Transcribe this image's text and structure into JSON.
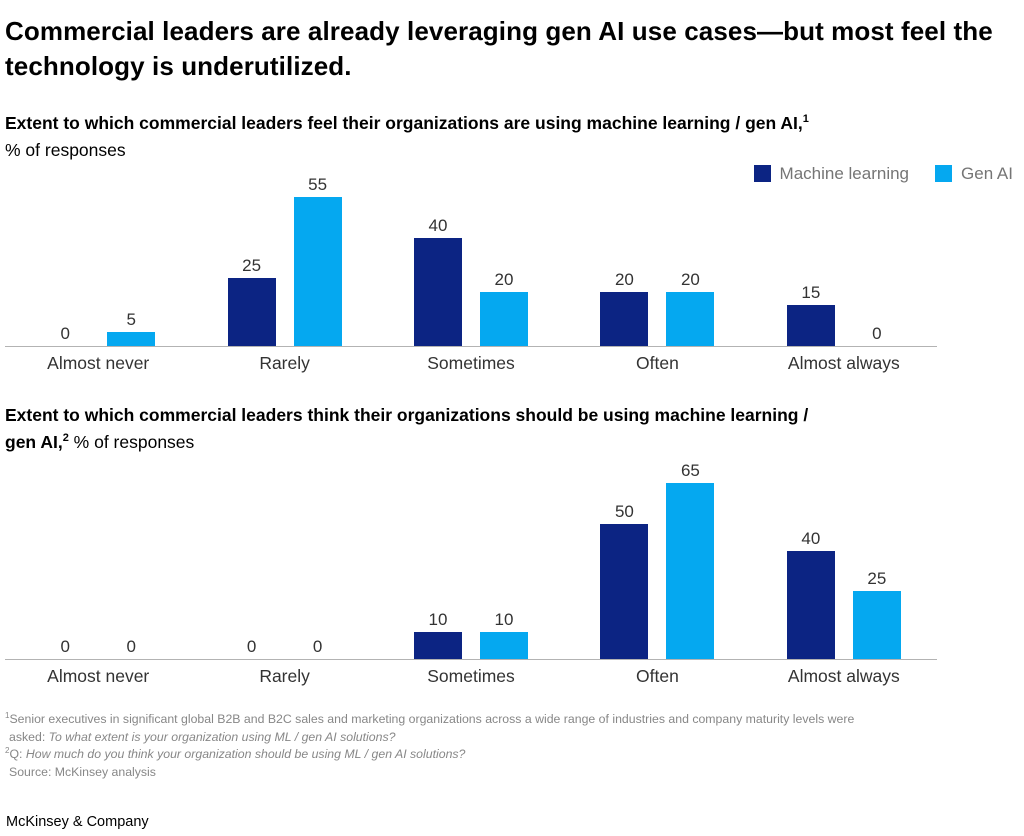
{
  "page": {
    "title": "Commercial leaders are already leveraging gen AI use cases—but most feel the technology is underutilized.",
    "footer": "McKinsey & Company"
  },
  "colors": {
    "machine_learning": "#0c2483",
    "gen_ai": "#05a8f0",
    "axis_line": "#b3b3b3",
    "legend_text": "#757575",
    "footnote_text": "#878787"
  },
  "legend": {
    "items": [
      {
        "label": "Machine learning",
        "color": "#0c2483"
      },
      {
        "label": "Gen AI",
        "color": "#05a8f0"
      }
    ]
  },
  "chart_data": [
    {
      "type": "bar",
      "title_line1_bold": "Extent to which commercial leaders feel their organizations are using machine learning / gen AI,",
      "title_sup": "1",
      "title_line2_regular": "% of responses",
      "categories": [
        "Almost never",
        "Rarely",
        "Sometimes",
        "Often",
        "Almost always"
      ],
      "series": [
        {
          "name": "Machine learning",
          "color": "#0c2483",
          "values": [
            0,
            25,
            40,
            20,
            15
          ]
        },
        {
          "name": "Gen AI",
          "color": "#05a8f0",
          "values": [
            5,
            55,
            20,
            20,
            0
          ]
        }
      ],
      "ylim": [
        0,
        55
      ],
      "grid": false,
      "legend_position": "top-right",
      "value_labels": true
    },
    {
      "type": "bar",
      "title_line1_bold": "Extent to which commercial leaders think their organizations should be using machine learning /",
      "title_line2_bold": "gen AI,",
      "title_sup": "2",
      "title_line2_regular": " % of responses",
      "categories": [
        "Almost never",
        "Rarely",
        "Sometimes",
        "Often",
        "Almost always"
      ],
      "series": [
        {
          "name": "Machine learning",
          "color": "#0c2483",
          "values": [
            0,
            0,
            10,
            50,
            40
          ]
        },
        {
          "name": "Gen AI",
          "color": "#05a8f0",
          "values": [
            0,
            0,
            10,
            65,
            25
          ]
        }
      ],
      "ylim": [
        0,
        65
      ],
      "grid": false,
      "legend_position": "none",
      "value_labels": true
    }
  ],
  "footnotes": {
    "line1_sup": "1",
    "line1_text": "Senior executives in significant global B2B and B2C sales and marketing organizations across a wide range of industries and company maturity levels were",
    "line2_prefix": "asked: ",
    "line2_italic": "To what extent is your organization using ML / gen AI solutions?",
    "line3_sup": "2",
    "line3_prefix": "Q: ",
    "line3_italic": "How much do you think your organization should be using ML / gen AI solutions?",
    "line4": "Source: McKinsey analysis"
  }
}
